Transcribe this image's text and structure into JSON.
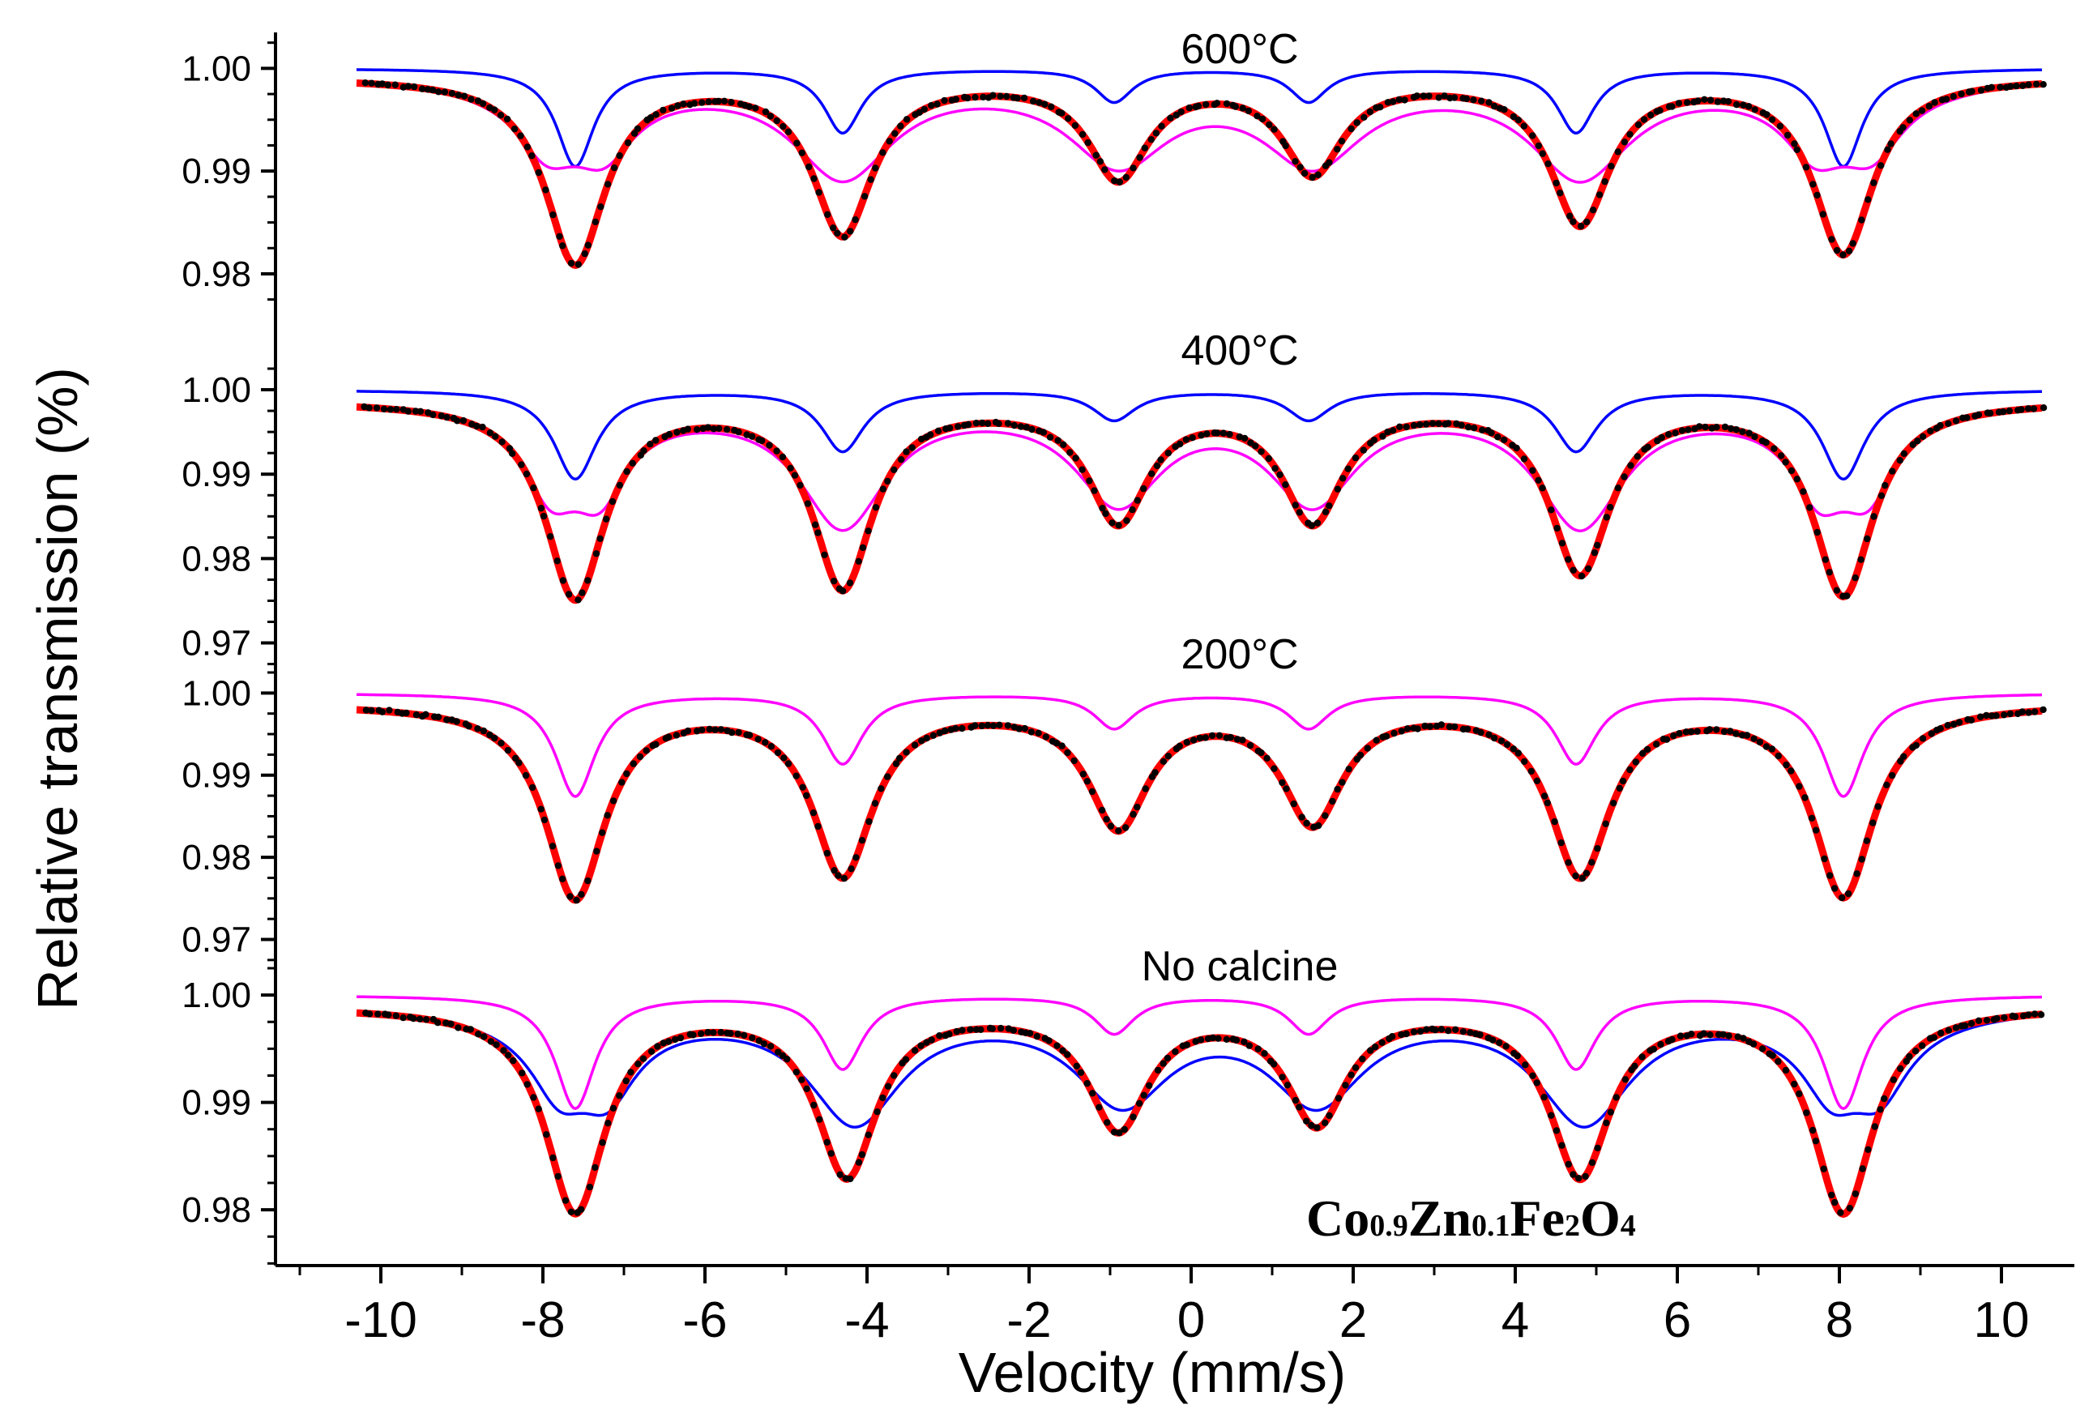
{
  "chart_data": {
    "type": "line",
    "xlabel": "Velocity (mm/s)",
    "ylabel": "Relative transmission (%)",
    "xlim": [
      -11.3,
      10.9
    ],
    "x_ticks": [
      -10,
      -8,
      -6,
      -4,
      -2,
      0,
      2,
      4,
      6,
      8,
      10
    ],
    "x_tick_labels": [
      "-10",
      "-8",
      "-6",
      "-4",
      "-2",
      "0",
      "2",
      "4",
      "6",
      "8",
      "10"
    ],
    "annotation": {
      "parts": [
        {
          "text": "Co",
          "sub": false
        },
        {
          "text": "0.9",
          "sub": true
        },
        {
          "text": "Zn",
          "sub": false
        },
        {
          "text": "0.1",
          "sub": true
        },
        {
          "text": "Fe",
          "sub": false
        },
        {
          "text": "2",
          "sub": true
        },
        {
          "text": "O",
          "sub": false
        },
        {
          "text": "4",
          "sub": true
        }
      ]
    },
    "colors": {
      "total_fit": "#ff0000",
      "sextet_a": "#ff00ff",
      "sextet_b": "#0000ff",
      "data_points": "#000000"
    },
    "panels": [
      {
        "title": "600°C",
        "ylim": [
          0.9755,
          1.0035
        ],
        "y_ticks": [
          0.98,
          0.99,
          1.0
        ],
        "y_tick_labels": [
          "0.98",
          "0.99",
          "1.00"
        ],
        "line_positions": [
          -7.6,
          -4.3,
          -0.9,
          1.5,
          4.8,
          8.05
        ],
        "data_positions": [
          -7.6,
          -4.3,
          -0.9,
          1.5,
          4.8,
          8.05
        ],
        "series": [
          {
            "role": "sextet_b",
            "color": "#0000ff",
            "baseline": 1.0,
            "positions": [
              -7.6,
              -4.3,
              -0.95,
              1.45,
              4.75,
              8.05
            ],
            "depths": [
              0.0095,
              0.0062,
              0.0032,
              0.0032,
              0.0062,
              0.0095
            ],
            "width": 0.28
          },
          {
            "role": "sextet_a",
            "color": "#ff00ff",
            "baseline": 0.9995,
            "positions": [
              -7.6,
              -4.3,
              -0.9,
              1.5,
              4.8,
              8.05
            ],
            "depths": [
              0.009,
              0.0095,
              0.008,
              0.008,
              0.0095,
              0.009
            ],
            "width": 0.75,
            "split": 0.7
          },
          {
            "role": "total_fit",
            "color": "#ff0000",
            "baseline": 0.9992,
            "positions": [
              -7.6,
              -4.3,
              -0.9,
              1.5,
              4.8,
              8.05
            ],
            "depths": [
              0.018,
              0.015,
              0.0095,
              0.009,
              0.014,
              0.017
            ],
            "width": 0.45
          }
        ]
      },
      {
        "title": "400°C",
        "ylim": [
          0.9665,
          1.0025
        ],
        "y_ticks": [
          0.97,
          0.98,
          0.99,
          1.0
        ],
        "y_tick_labels": [
          "0.97",
          "0.98",
          "0.99",
          "1.00"
        ],
        "line_positions": [
          -7.6,
          -4.3,
          -0.9,
          1.5,
          4.8,
          8.05
        ],
        "data_positions": [
          -7.6,
          -4.3,
          -0.9,
          1.5,
          4.8,
          8.05
        ],
        "series": [
          {
            "role": "sextet_b",
            "color": "#0000ff",
            "baseline": 1.0,
            "positions": [
              -7.6,
              -4.3,
              -0.95,
              1.45,
              4.75,
              8.05
            ],
            "depths": [
              0.0105,
              0.0072,
              0.0035,
              0.0035,
              0.0072,
              0.0105
            ],
            "width": 0.32
          },
          {
            "role": "sextet_a",
            "color": "#ff00ff",
            "baseline": 0.999,
            "positions": [
              -7.6,
              -4.3,
              -0.9,
              1.5,
              4.8,
              8.05
            ],
            "depths": [
              0.0135,
              0.0145,
              0.0115,
              0.0115,
              0.0145,
              0.0135
            ],
            "width": 0.65,
            "split": 0.6
          },
          {
            "role": "total_fit",
            "color": "#ff0000",
            "baseline": 0.9988,
            "positions": [
              -7.6,
              -4.3,
              -0.9,
              1.5,
              4.8,
              8.05
            ],
            "depths": [
              0.0232,
              0.0218,
              0.0138,
              0.0138,
              0.02,
              0.0228
            ],
            "width": 0.45
          }
        ]
      },
      {
        "title": "200°C",
        "ylim": [
          0.9665,
          1.0025
        ],
        "y_ticks": [
          0.97,
          0.98,
          0.99,
          1.0
        ],
        "y_tick_labels": [
          "0.97",
          "0.98",
          "0.99",
          "1.00"
        ],
        "line_positions": [
          -7.6,
          -4.3,
          -0.9,
          1.5,
          4.8,
          8.05
        ],
        "data_positions": [
          -7.6,
          -4.3,
          -0.9,
          1.5,
          4.8,
          8.05
        ],
        "series": [
          {
            "role": "sextet_a",
            "color": "#ff00ff",
            "baseline": 1.0,
            "positions": [
              -7.6,
              -4.3,
              -0.95,
              1.45,
              4.75,
              8.05
            ],
            "depths": [
              0.0125,
              0.0085,
              0.0042,
              0.0042,
              0.0085,
              0.0125
            ],
            "width": 0.3
          },
          {
            "role": "total_fit",
            "color": "#ff0000",
            "baseline": 0.9988,
            "positions": [
              -7.6,
              -4.3,
              -0.9,
              1.5,
              4.8,
              8.05
            ],
            "depths": [
              0.0235,
              0.0205,
              0.0145,
              0.014,
              0.0205,
              0.0232
            ],
            "width": 0.45
          }
        ]
      },
      {
        "title": "No calcine",
        "ylim": [
          0.9748,
          1.0025
        ],
        "y_ticks": [
          0.98,
          0.99,
          1.0
        ],
        "y_tick_labels": [
          "0.98",
          "0.99",
          "1.00"
        ],
        "line_positions": [
          -7.6,
          -4.25,
          -0.9,
          1.55,
          4.8,
          8.05
        ],
        "data_positions": [
          -7.6,
          -4.25,
          -0.9,
          1.55,
          4.8,
          8.05
        ],
        "series": [
          {
            "role": "sextet_a",
            "color": "#ff00ff",
            "baseline": 1.0,
            "positions": [
              -7.6,
              -4.3,
              -0.95,
              1.45,
              4.75,
              8.05
            ],
            "depths": [
              0.0105,
              0.0068,
              0.0035,
              0.0035,
              0.0068,
              0.0105
            ],
            "width": 0.3
          },
          {
            "role": "sextet_b",
            "color": "#0000ff",
            "baseline": 0.9992,
            "positions": [
              -7.5,
              -4.15,
              -0.85,
              1.55,
              4.85,
              8.2
            ],
            "depths": [
              0.0098,
              0.0105,
              0.0085,
              0.0085,
              0.0105,
              0.0098
            ],
            "width": 0.7,
            "split": 0.6
          },
          {
            "role": "total_fit",
            "color": "#ff0000",
            "baseline": 0.999,
            "positions": [
              -7.6,
              -4.25,
              -0.9,
              1.55,
              4.8,
              8.05
            ],
            "depths": [
              0.019,
              0.0155,
              0.011,
              0.0105,
              0.0155,
              0.019
            ],
            "width": 0.45
          }
        ]
      }
    ]
  }
}
